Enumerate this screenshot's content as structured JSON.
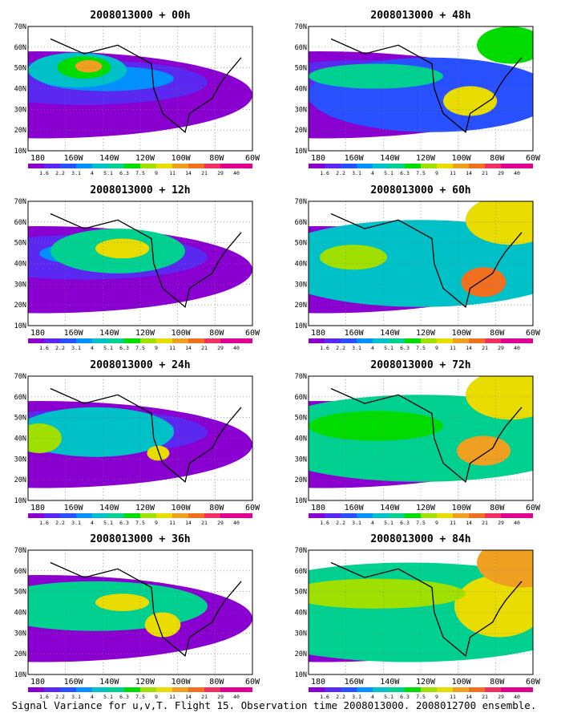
{
  "panels": [
    {
      "title": "2008013000 + 00h"
    },
    {
      "title": "2008013000 + 48h"
    },
    {
      "title": "2008013000 + 12h"
    },
    {
      "title": "2008013000 + 60h"
    },
    {
      "title": "2008013000 + 24h"
    },
    {
      "title": "2008013000 + 72h"
    },
    {
      "title": "2008013000 + 36h"
    },
    {
      "title": "2008013000 + 84h"
    }
  ],
  "axes": {
    "y_ticks": [
      "70N",
      "60N",
      "50N",
      "40N",
      "30N",
      "20N",
      "10N"
    ],
    "x_ticks": [
      "180",
      "160W",
      "140W",
      "120W",
      "100W",
      "80W",
      "60W"
    ]
  },
  "legend": {
    "labels": [
      "1.6",
      "2.2",
      "3.1",
      "4",
      "5.1",
      "6.3",
      "7.5",
      "9",
      "11",
      "14",
      "21",
      "29",
      "40"
    ],
    "colors": [
      "#8a00d0",
      "#5a28f0",
      "#2850ff",
      "#0090ff",
      "#00c0c8",
      "#00d090",
      "#00dc00",
      "#a0e000",
      "#e8dc00",
      "#f0a020",
      "#f07020",
      "#f03060",
      "#e00090"
    ]
  },
  "caption": "Signal Variance for u,v,T. Flight 15. Observation time 2008013000. 2008012700 ensemble."
}
